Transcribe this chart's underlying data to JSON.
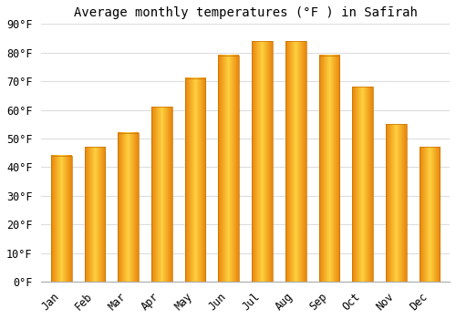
{
  "title": "Average monthly temperatures (°F ) in Safīrah",
  "months": [
    "Jan",
    "Feb",
    "Mar",
    "Apr",
    "May",
    "Jun",
    "Jul",
    "Aug",
    "Sep",
    "Oct",
    "Nov",
    "Dec"
  ],
  "values": [
    44,
    47,
    52,
    61,
    71,
    79,
    84,
    84,
    79,
    68,
    55,
    47
  ],
  "bar_color_center": "#FFD040",
  "bar_color_edge": "#E8850A",
  "ylim": [
    0,
    90
  ],
  "yticks": [
    0,
    10,
    20,
    30,
    40,
    50,
    60,
    70,
    80,
    90
  ],
  "ytick_labels": [
    "0°F",
    "10°F",
    "20°F",
    "30°F",
    "40°F",
    "50°F",
    "60°F",
    "70°F",
    "80°F",
    "90°F"
  ],
  "bg_color": "#ffffff",
  "grid_color": "#dddddd",
  "title_fontsize": 10,
  "tick_fontsize": 8.5
}
